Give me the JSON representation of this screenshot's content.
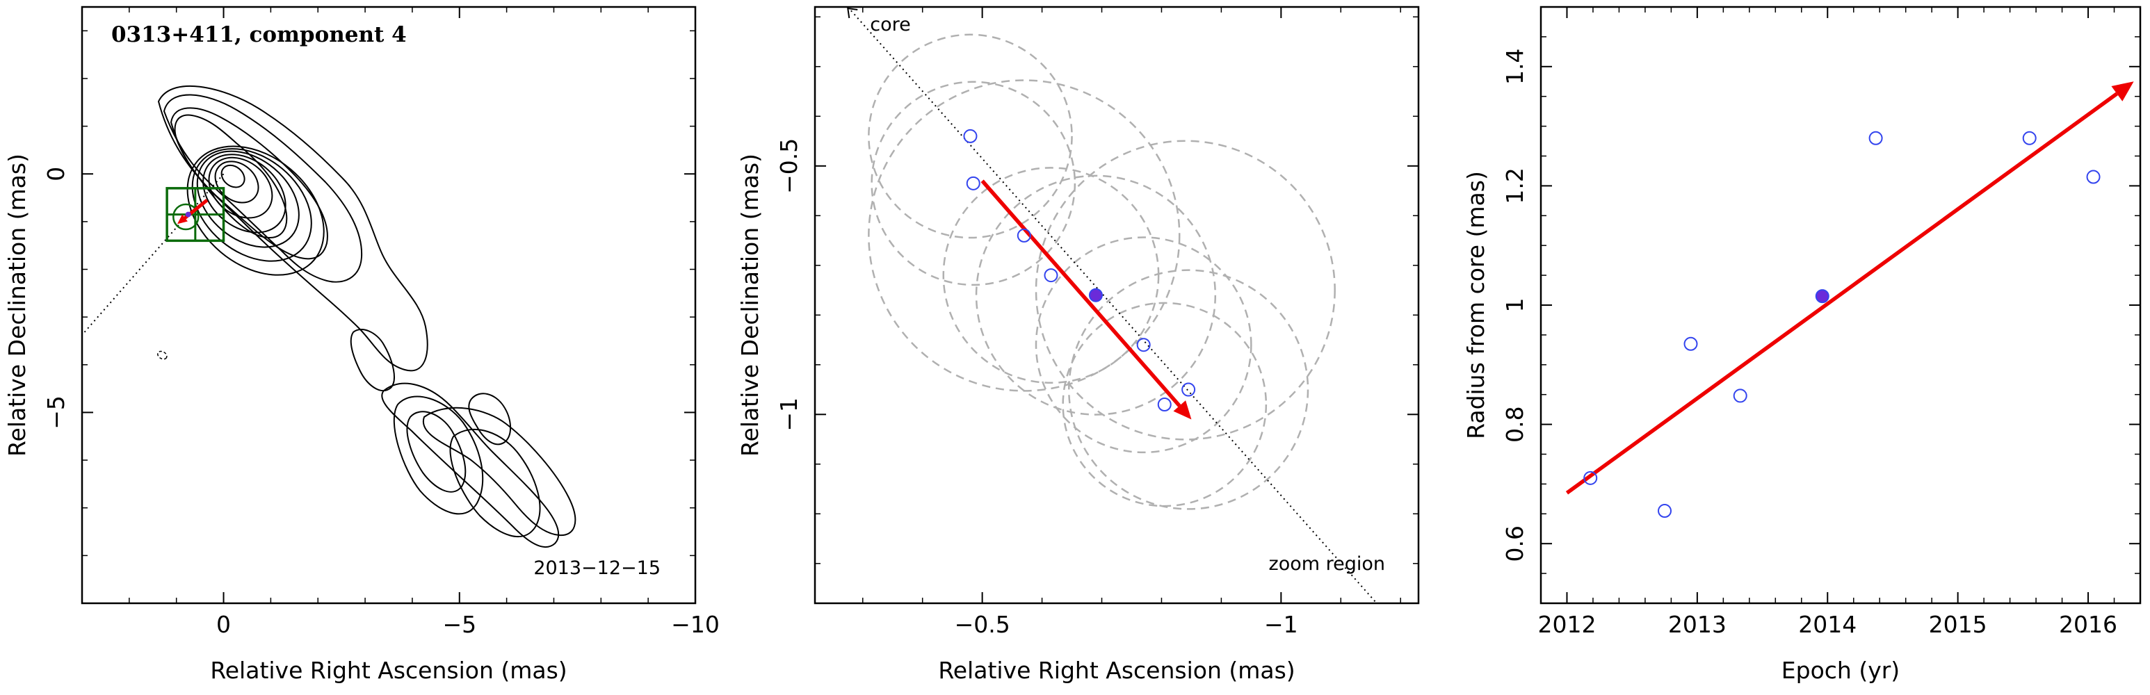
{
  "colors": {
    "axis": "#000000",
    "contour": "#000000",
    "arrow": "#ee0000",
    "point_open": "#3344ee",
    "point_filled": "#6a2bd9",
    "zoom_box": "#0b6b0b",
    "circle_dashed": "#b0b0b0",
    "jet_line": "#000000"
  },
  "chart_data": [
    {
      "type": "contour",
      "title": "0313+411, component 4",
      "epoch_label": "2013−12−15",
      "xlabel": "Relative Right Ascension (mas)",
      "ylabel": "Relative Declination (mas)",
      "xlim": [
        3,
        -10
      ],
      "ylim": [
        -9,
        3.5
      ],
      "x_ticks": [
        0,
        -5,
        -10
      ],
      "x_tick_labels": [
        "0",
        "−5",
        "−10"
      ],
      "y_ticks": [
        0,
        -5
      ],
      "y_tick_labels": [
        "0",
        "−5"
      ],
      "component": {
        "x": 0.8,
        "y": -0.9
      },
      "zoom_box": {
        "x": [
          0,
          1.2
        ],
        "y": [
          -0.3,
          -1.4
        ]
      },
      "beam": {
        "x": 1.3,
        "y": -3.8
      },
      "jet_direction": {
        "from": [
          0,
          0
        ],
        "to": [
          8,
          -9
        ]
      }
    },
    {
      "type": "scatter",
      "xlabel": "Relative Right Ascension (mas)",
      "ylabel": "Relative Declination (mas)",
      "xlim": [
        -0.22,
        -1.23
      ],
      "ylim": [
        -1.38,
        -0.18
      ],
      "x_ticks": [
        -0.5,
        -1
      ],
      "x_tick_labels": [
        "−0.5",
        "−1"
      ],
      "y_ticks": [
        -0.5,
        -1
      ],
      "y_tick_labels": [
        "−0.5",
        "−1"
      ],
      "annotations": {
        "core": "core",
        "zoom": "zoom region"
      },
      "points": [
        {
          "x": -0.48,
          "y": -0.44,
          "radius": 0.17
        },
        {
          "x": -0.485,
          "y": -0.535,
          "radius": 0.17
        },
        {
          "x": -0.57,
          "y": -0.64,
          "radius": 0.26
        },
        {
          "x": -0.615,
          "y": -0.72,
          "radius": 0.18
        },
        {
          "x": -0.77,
          "y": -0.86,
          "radius": 0.18
        },
        {
          "x": -0.845,
          "y": -0.95,
          "radius": 0.2
        },
        {
          "x": -0.805,
          "y": -0.98,
          "radius": 0.17
        },
        {
          "x": -0.69,
          "y": -0.76,
          "radius": 0.2,
          "filled": true
        }
      ],
      "extra_circles": [
        {
          "x": -0.84,
          "y": -0.75,
          "radius": 0.25
        }
      ],
      "velocity_arrow": {
        "from": [
          -0.5,
          -0.53
        ],
        "to": [
          -0.85,
          -1.01
        ]
      },
      "jet_direction": {
        "from": [
          -0.275,
          -0.18
        ],
        "to": [
          -1.16,
          -1.38
        ]
      }
    },
    {
      "type": "scatter",
      "xlabel": "Epoch (yr)",
      "ylabel": "Radius from core (mas)",
      "xlim": [
        2011.8,
        2016.4
      ],
      "ylim": [
        0.5,
        1.5
      ],
      "x_ticks": [
        2012,
        2013,
        2014,
        2015,
        2016
      ],
      "x_tick_labels": [
        "2012",
        "2013",
        "2014",
        "2015",
        "2016"
      ],
      "y_ticks": [
        0.6,
        0.8,
        1,
        1.2,
        1.4
      ],
      "y_tick_labels": [
        "0.6",
        "0.8",
        "1",
        "1.2",
        "1.4"
      ],
      "points": [
        {
          "x": 2012.18,
          "y": 0.71
        },
        {
          "x": 2012.75,
          "y": 0.655
        },
        {
          "x": 2012.95,
          "y": 0.935
        },
        {
          "x": 2013.33,
          "y": 0.848
        },
        {
          "x": 2013.96,
          "y": 1.015,
          "filled": true
        },
        {
          "x": 2014.37,
          "y": 1.28
        },
        {
          "x": 2015.55,
          "y": 1.28
        },
        {
          "x": 2016.04,
          "y": 1.215
        }
      ],
      "fit_arrow": {
        "from": [
          2012.0,
          0.685
        ],
        "to": [
          2016.35,
          1.375
        ]
      }
    }
  ]
}
